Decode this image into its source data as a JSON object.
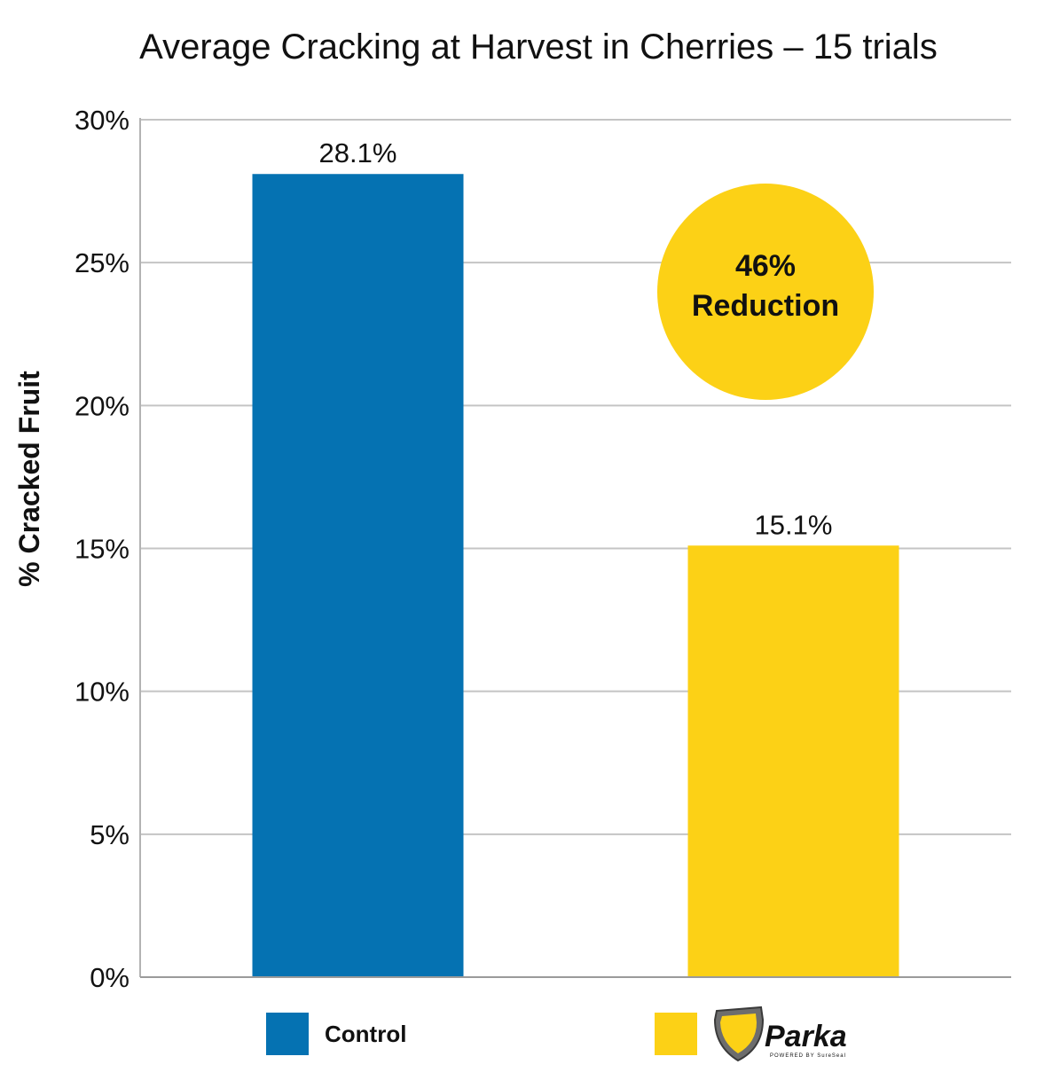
{
  "chart_data": {
    "type": "bar",
    "title": "Average Cracking at Harvest in Cherries – 15 trials",
    "ylabel": "% Cracked Fruit",
    "xlabel": "",
    "ylim": [
      0,
      30
    ],
    "yticks": [
      "0%",
      "5%",
      "10%",
      "15%",
      "20%",
      "25%",
      "30%"
    ],
    "ytick_values": [
      0,
      5,
      10,
      15,
      20,
      25,
      30
    ],
    "grid": true,
    "categories": [
      "Control",
      "Parka"
    ],
    "values": [
      28.1,
      15.1
    ],
    "data_labels": [
      "28.1%",
      "15.1%"
    ],
    "colors": [
      "#0572b2",
      "#fcd116"
    ],
    "annotation": {
      "line1": "46%",
      "line2": "Reduction",
      "color": "#fcd116"
    },
    "legend": {
      "placement": "bottom",
      "items": [
        {
          "label": "Control",
          "color": "#0572b2"
        },
        {
          "label": "Parka",
          "color": "#fcd116",
          "logo_icon": "parka-shield-logo",
          "logo_subtext": "POWERED BY SureSeal"
        }
      ]
    }
  }
}
